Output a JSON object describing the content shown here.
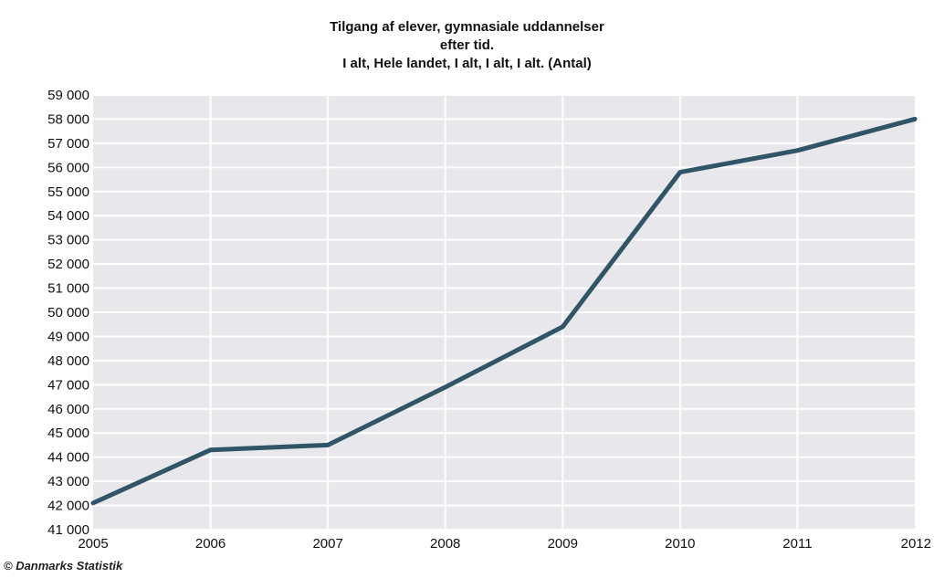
{
  "chart_data": {
    "type": "line",
    "title_lines": [
      "Tilgang af elever, gymnasiale uddannelser",
      "efter tid.",
      "I alt, Hele landet, I alt, I alt, I alt. (Antal)"
    ],
    "xlabel": "",
    "ylabel": "",
    "x": [
      "2005",
      "2006",
      "2007",
      "2008",
      "2009",
      "2010",
      "2011",
      "2012"
    ],
    "series": [
      {
        "values": [
          42100,
          44300,
          44500,
          46900,
          49400,
          55800,
          56700,
          58000
        ]
      }
    ],
    "ylim": [
      41000,
      59000
    ],
    "yticks": [
      "41 000",
      "42 000",
      "43 000",
      "44 000",
      "45 000",
      "46 000",
      "47 000",
      "48 000",
      "49 000",
      "50 000",
      "51 000",
      "52 000",
      "53 000",
      "54 000",
      "55 000",
      "56 000",
      "57 000",
      "58 000",
      "59 000"
    ],
    "ytick_values": [
      41000,
      42000,
      43000,
      44000,
      45000,
      46000,
      47000,
      48000,
      49000,
      50000,
      51000,
      52000,
      53000,
      54000,
      55000,
      56000,
      57000,
      58000,
      59000
    ],
    "grid": true,
    "line_color": "#2f5566",
    "grid_color": "#ffffff",
    "plot_background": "#e8e8ec"
  },
  "footer": "© Danmarks Statistik"
}
